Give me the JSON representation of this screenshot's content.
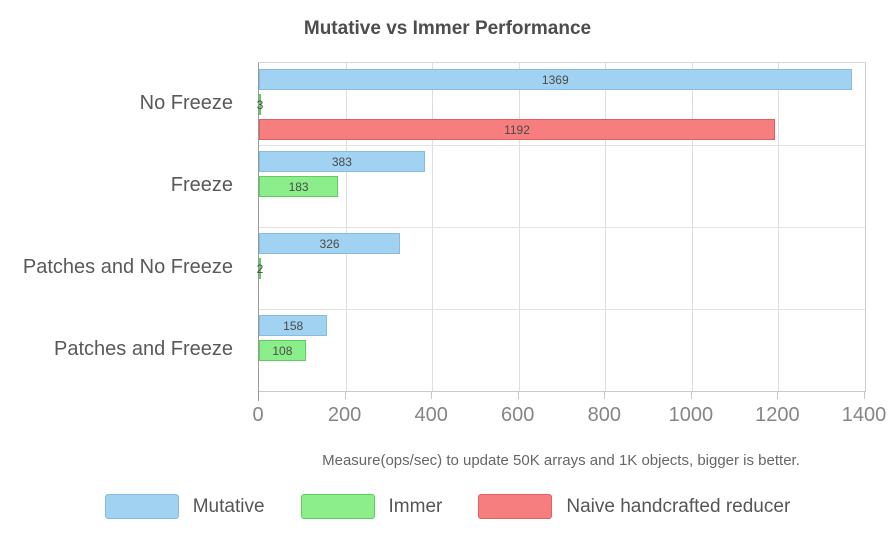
{
  "title": "Mutative vs Immer Performance",
  "subtitle": "Measure(ops/sec) to update 50K arrays and 1K objects, bigger is better.",
  "colors": {
    "grid": "#dedede",
    "axis": "#999999",
    "title_text": "#4d4d4d",
    "category_text": "#595959",
    "tick_text": "#858585",
    "value_label_text": "#4a4a4a"
  },
  "chart_data": {
    "type": "bar",
    "orientation": "horizontal",
    "title": "Mutative vs Immer Performance",
    "xlabel": "Measure(ops/sec) to update 50K arrays and 1K objects, bigger is better.",
    "ylabel": "",
    "categories": [
      "No Freeze",
      "Freeze",
      "Patches and No Freeze",
      "Patches and Freeze"
    ],
    "series": [
      {
        "name": "Mutative",
        "fill": "#a2d2f2",
        "border": "#86bcdf",
        "values": [
          1369,
          383,
          326,
          158
        ]
      },
      {
        "name": "Immer",
        "fill": "#8bee8b",
        "border": "#5ecf5e",
        "values": [
          3,
          183,
          2,
          108
        ]
      },
      {
        "name": "Naive handcrafted reducer",
        "fill": "#f77e7e",
        "border": "#e05f5f",
        "values": [
          1192,
          null,
          null,
          null
        ]
      }
    ],
    "xlim": [
      0,
      1400
    ],
    "xticks": [
      0,
      200,
      400,
      600,
      800,
      1000,
      1200,
      1400
    ],
    "grid": true,
    "value_labels": true,
    "legend_position": "bottom"
  }
}
